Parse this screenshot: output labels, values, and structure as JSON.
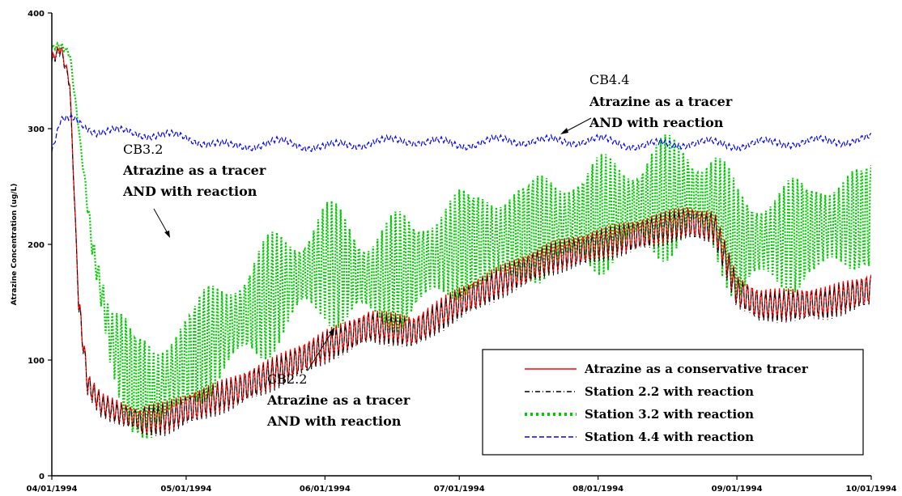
{
  "chart_data": {
    "type": "line",
    "title": "",
    "xlabel": "",
    "ylabel": "Atrazine Concentration (ug/L)",
    "x_ticks": [
      "04/01/1994",
      "05/01/1994",
      "06/01/1994",
      "07/01/1994",
      "08/01/1994",
      "09/01/1994",
      "10/01/1994"
    ],
    "y_ticks": [
      "0",
      "100",
      "200",
      "300",
      "400"
    ],
    "xlim": [
      "04/01/1994",
      "10/01/1994"
    ],
    "ylim": [
      0,
      400
    ],
    "grid": false,
    "legend_position": "bottom-right",
    "colors": {
      "conservative": "#ff0000",
      "station22": "#000000",
      "station32": "#00cc00",
      "station44": "#0000ff"
    },
    "series": [
      {
        "name": "Atrazine as a conservative tracer",
        "key": "conservative",
        "x": [
          "04/01/1994",
          "04/03/1994",
          "04/05/1994",
          "04/07/1994",
          "04/09/1994",
          "04/12/1994",
          "04/16/1994",
          "04/21/1994",
          "04/26/1994",
          "05/01/1994",
          "05/11/1994",
          "05/21/1994",
          "06/01/1994",
          "06/11/1994",
          "06/21/1994",
          "07/01/1994",
          "07/11/1994",
          "07/21/1994",
          "08/01/1994",
          "08/11/1994",
          "08/21/1994",
          "08/27/1994",
          "09/01/1994",
          "09/06/1994",
          "09/11/1994",
          "09/21/1994",
          "10/01/1994"
        ],
        "y": [
          360,
          370,
          340,
          150,
          80,
          62,
          55,
          48,
          50,
          58,
          72,
          90,
          112,
          130,
          125,
          150,
          170,
          188,
          200,
          210,
          220,
          215,
          160,
          148,
          148,
          150,
          162
        ]
      },
      {
        "name": "Station 2.2 with reaction",
        "key": "station22",
        "x": [
          "04/01/1994",
          "04/03/1994",
          "04/05/1994",
          "04/07/1994",
          "04/09/1994",
          "04/12/1994",
          "04/16/1994",
          "04/21/1994",
          "04/26/1994",
          "05/01/1994",
          "05/11/1994",
          "05/21/1994",
          "06/01/1994",
          "06/11/1994",
          "06/21/1994",
          "07/01/1994",
          "07/11/1994",
          "07/21/1994",
          "08/01/1994",
          "08/11/1994",
          "08/21/1994",
          "08/27/1994",
          "09/01/1994",
          "09/06/1994",
          "09/11/1994",
          "09/21/1994",
          "10/01/1994"
        ],
        "y": [
          358,
          368,
          338,
          148,
          78,
          60,
          53,
          47,
          48,
          56,
          70,
          88,
          110,
          128,
          123,
          148,
          168,
          186,
          198,
          208,
          218,
          213,
          158,
          146,
          146,
          148,
          160
        ]
      },
      {
        "name": "Station 3.2 with reaction",
        "key": "station32",
        "x": [
          "04/01/1994",
          "04/03/1994",
          "04/05/1994",
          "04/07/1994",
          "04/10/1994",
          "04/14/1994",
          "04/19/1994",
          "04/24/1994",
          "05/01/1994",
          "05/11/1994",
          "05/21/1994",
          "06/01/1994",
          "06/11/1994",
          "06/21/1994",
          "07/01/1994",
          "07/11/1994",
          "07/21/1994",
          "08/01/1994",
          "08/11/1994",
          "08/21/1994",
          "08/27/1994",
          "09/01/1994",
          "09/11/1994",
          "09/21/1994",
          "10/01/1994"
        ],
        "y": [
          370,
          372,
          365,
          300,
          200,
          120,
          80,
          70,
          100,
          130,
          160,
          185,
          170,
          180,
          200,
          205,
          215,
          225,
          235,
          245,
          235,
          200,
          205,
          215,
          225
        ]
      },
      {
        "name": "Station 4.4 with reaction",
        "key": "station44",
        "x": [
          "04/01/1994",
          "04/03/1994",
          "04/06/1994",
          "04/11/1994",
          "04/21/1994",
          "05/01/1994",
          "05/11/1994",
          "05/21/1994",
          "06/01/1994",
          "06/11/1994",
          "06/21/1994",
          "07/01/1994",
          "07/11/1994",
          "07/21/1994",
          "08/01/1994",
          "08/11/1994",
          "08/21/1994",
          "09/01/1994",
          "09/11/1994",
          "09/21/1994",
          "10/01/1994"
        ],
        "y": [
          280,
          305,
          308,
          298,
          296,
          292,
          284,
          288,
          284,
          288,
          290,
          286,
          290,
          289,
          290,
          285,
          288,
          286,
          288,
          289,
          291
        ]
      }
    ],
    "annotations": [
      {
        "id": "cb44",
        "lines": [
          "CB4.4",
          "Atrazine as a tracer",
          "AND with reaction"
        ]
      },
      {
        "id": "cb32",
        "lines": [
          "CB3.2",
          "Atrazine as a tracer",
          "AND with reaction"
        ]
      },
      {
        "id": "cb22",
        "lines": [
          "CB2.2",
          "Atrazine as a tracer",
          "AND with reaction"
        ]
      }
    ]
  }
}
